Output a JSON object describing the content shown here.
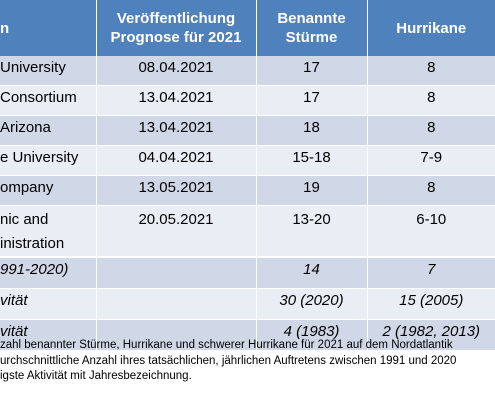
{
  "chart_data": {
    "type": "table",
    "columns": [
      "n",
      "Veröffentlichung\nPrognose für 2021",
      "Benannte\nStürme",
      "Hurrikane"
    ],
    "rows": [
      {
        "source": "University",
        "date": "08.04.2021",
        "storms": "17",
        "hurricanes": "8"
      },
      {
        "source": "Consortium",
        "date": "13.04.2021",
        "storms": "17",
        "hurricanes": "8"
      },
      {
        "source": "Arizona",
        "date": "13.04.2021",
        "storms": "18",
        "hurricanes": "8"
      },
      {
        "source": "e University",
        "date": "04.04.2021",
        "storms": "15-18",
        "hurricanes": "7-9"
      },
      {
        "source": "ompany",
        "date": "13.05.2021",
        "storms": "19",
        "hurricanes": "8"
      },
      {
        "source": "nic and\ninistration",
        "date": "20.05.2021",
        "storms": "13-20",
        "hurricanes": "6-10"
      }
    ],
    "summary_rows": [
      {
        "label": "991-2020)",
        "storms": "14",
        "hurricanes": "7"
      },
      {
        "label": "vität",
        "storms": "30 (2020)",
        "hurricanes": "15 (2005)"
      },
      {
        "label": "vität",
        "storms": "4 (1983)",
        "hurricanes": "2 (1982, 2013)"
      }
    ],
    "footnote": [
      "zahl benannter Stürme, Hurrikane und schwerer Hurrikane für 2021 auf dem Nordatlantik",
      "urchschnittliche Anzahl ihres tatsächlichen, jährlichen Auftretens zwischen 1991 und 2020",
      "igste Aktivität mit Jahresbezeichnung."
    ]
  },
  "colors": {
    "header_bg": "#4f81bd",
    "row_dark": "#d0d8e8",
    "row_light": "#e9edf4"
  }
}
